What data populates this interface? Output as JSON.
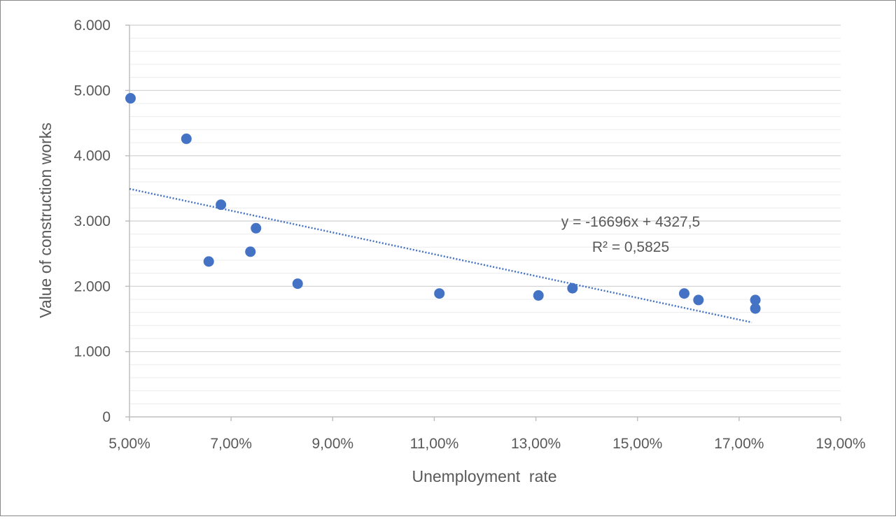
{
  "chart_data": {
    "type": "scatter",
    "title": "",
    "xlabel": "Unemployment  rate",
    "ylabel": "Value of construction works",
    "xlim": [
      0.05,
      0.19
    ],
    "ylim": [
      0,
      6000
    ],
    "x_ticks": [
      0.05,
      0.07,
      0.09,
      0.11,
      0.13,
      0.15,
      0.17,
      0.19
    ],
    "x_tick_labels": [
      "5,00%",
      "7,00%",
      "9,00%",
      "11,00%",
      "13,00%",
      "15,00%",
      "17,00%",
      "19,00%"
    ],
    "y_ticks": [
      0,
      1000,
      2000,
      3000,
      4000,
      5000,
      6000
    ],
    "y_tick_labels": [
      "0",
      "1.000",
      "2.000",
      "3.000",
      "4.000",
      "5.000",
      "6.000"
    ],
    "y_minor_step": 200,
    "grid": true,
    "series": [
      {
        "name": "Value of construction works",
        "color": "#4472c4",
        "points": [
          {
            "x": 0.0502,
            "y": 4880
          },
          {
            "x": 0.0612,
            "y": 4260
          },
          {
            "x": 0.0656,
            "y": 2380
          },
          {
            "x": 0.068,
            "y": 3250
          },
          {
            "x": 0.0738,
            "y": 2530
          },
          {
            "x": 0.0749,
            "y": 2890
          },
          {
            "x": 0.0831,
            "y": 2040
          },
          {
            "x": 0.111,
            "y": 1890
          },
          {
            "x": 0.1305,
            "y": 1860
          },
          {
            "x": 0.1372,
            "y": 1970
          },
          {
            "x": 0.1592,
            "y": 1890
          },
          {
            "x": 0.162,
            "y": 1790
          },
          {
            "x": 0.1732,
            "y": 1790
          },
          {
            "x": 0.1732,
            "y": 1660
          }
        ]
      }
    ],
    "trendline": {
      "type": "linear",
      "slope": -16696,
      "intercept": 4327.5,
      "x_range": [
        0.05,
        0.1725
      ],
      "color": "#4472c4",
      "style": "dotted"
    },
    "annotations": {
      "equation": "y = -16696x + 4327,5",
      "r_squared": "R² = 0,5825"
    }
  }
}
